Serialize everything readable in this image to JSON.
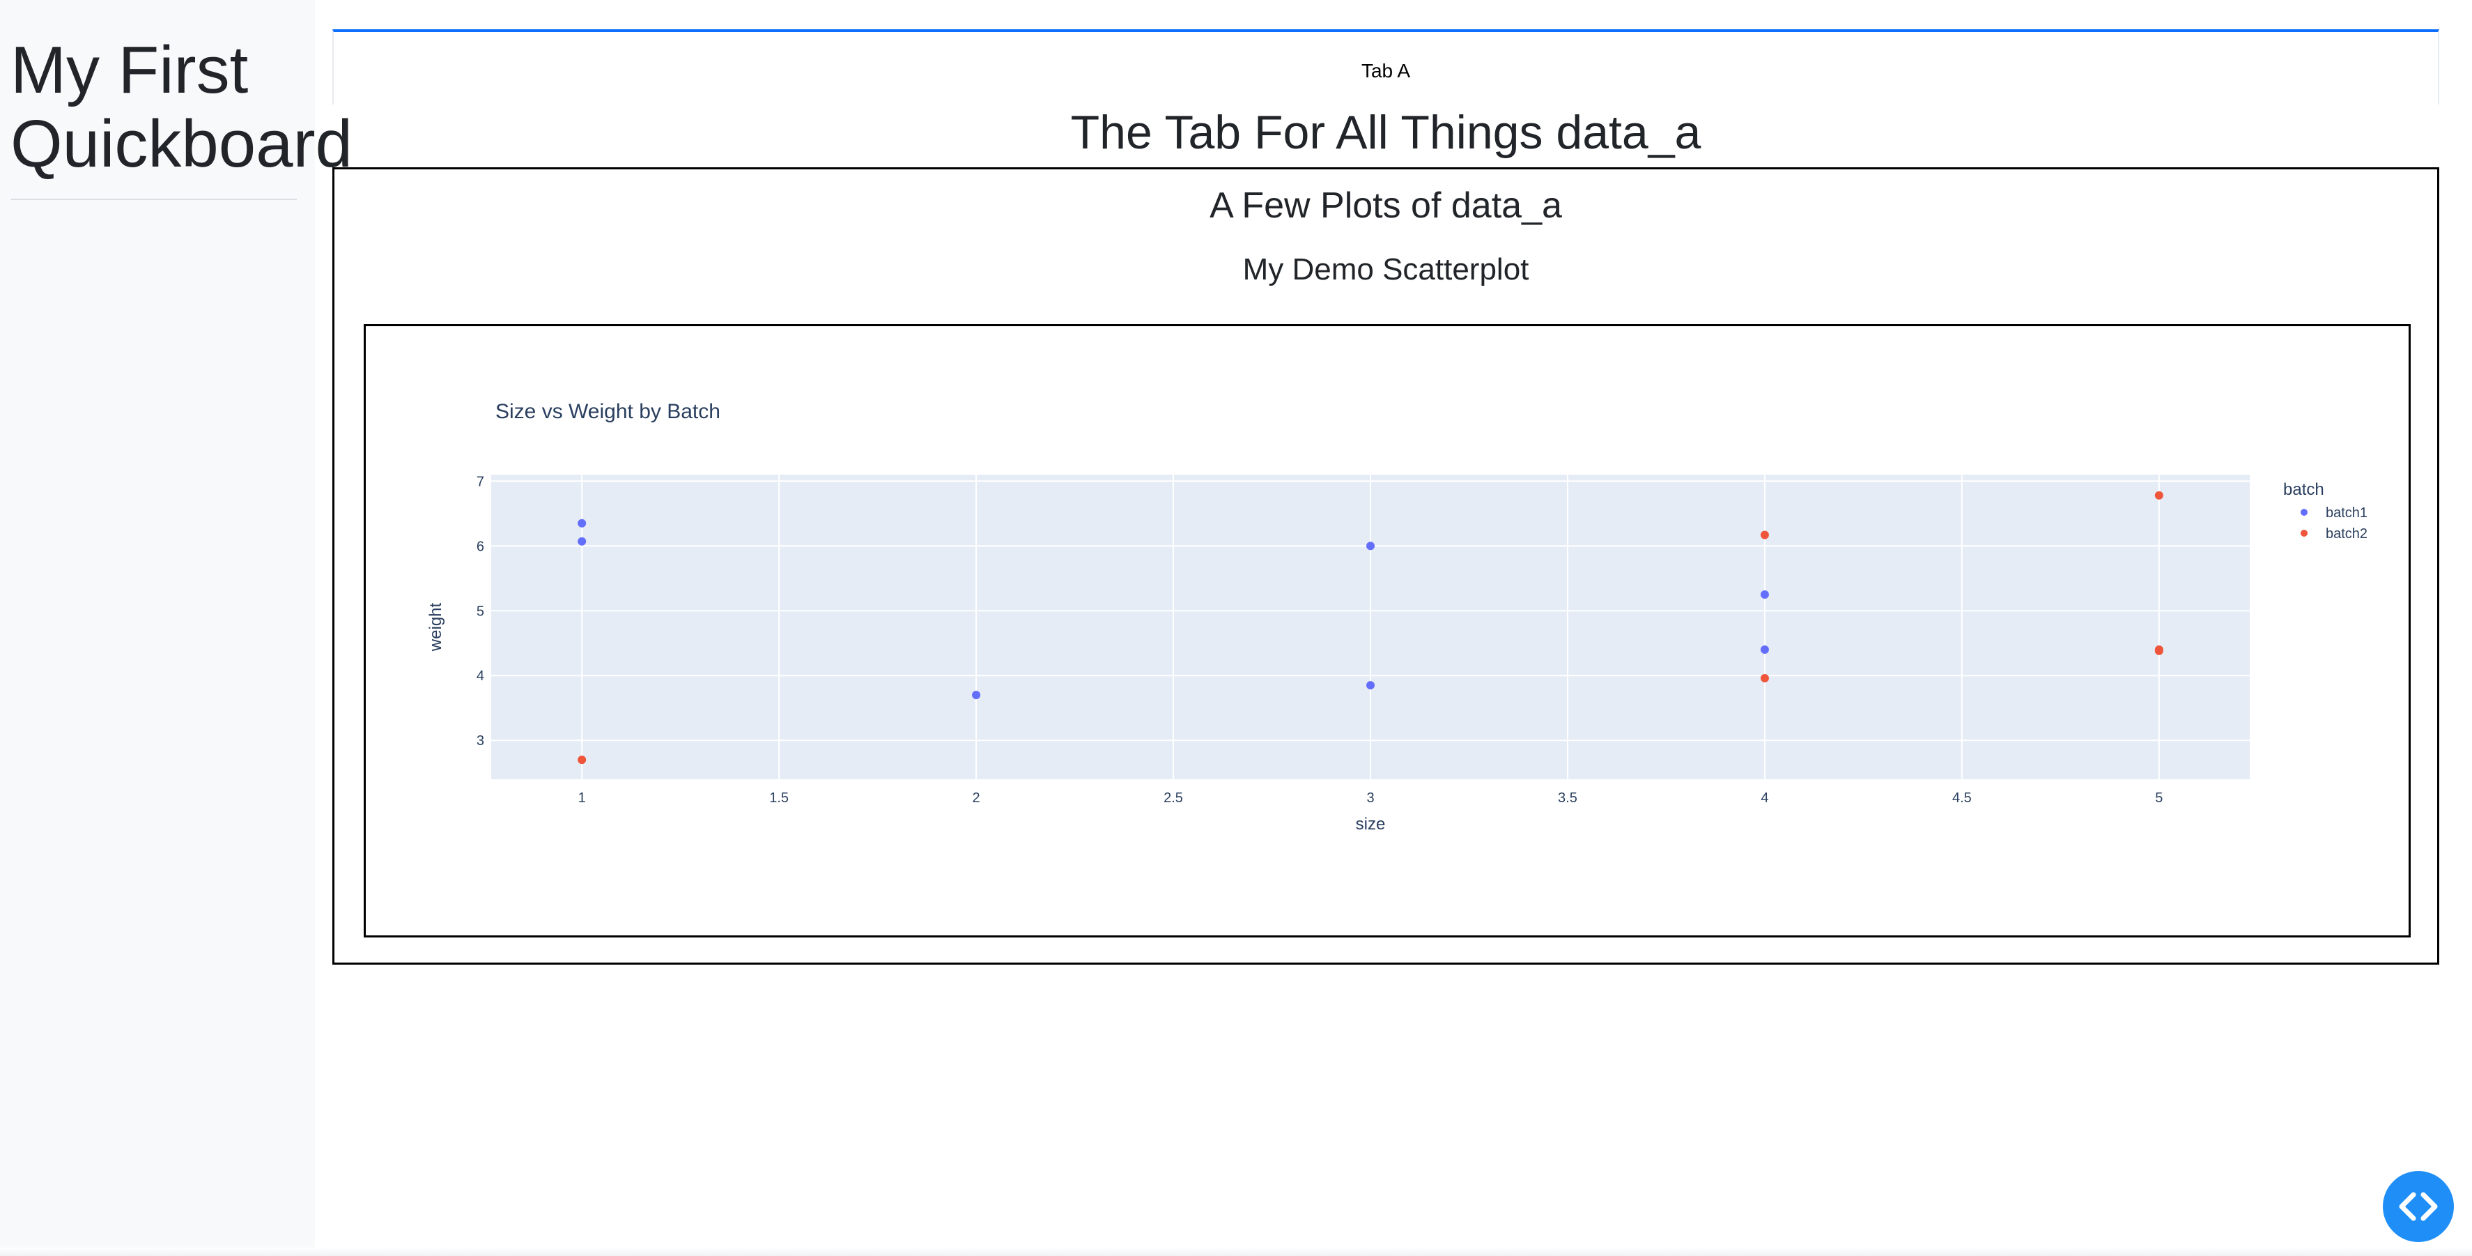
{
  "sidebar": {
    "title": "My First\nQuickboard"
  },
  "tabs": [
    {
      "label": "Tab A",
      "active": true
    }
  ],
  "page": {
    "heading": "The Tab For All Things data_a"
  },
  "section": {
    "heading": "A Few Plots of data_a",
    "plot_heading": "My Demo Scatterplot"
  },
  "colors": {
    "accent": "#0d6efd",
    "plot_background": "#e5ecf6",
    "batch1": "#636efa",
    "batch2": "#ef553b",
    "fab": "#1f8ff7"
  },
  "fab": {
    "icon": "code-icon"
  },
  "chart_data": {
    "type": "scatter",
    "title": "Size vs Weight by Batch",
    "xlabel": "size",
    "ylabel": "weight",
    "xlim": [
      0.77,
      5.23
    ],
    "ylim": [
      2.4,
      7.1
    ],
    "x_ticks": [
      "1",
      "1.5",
      "2",
      "2.5",
      "3",
      "3.5",
      "4",
      "4.5",
      "5"
    ],
    "y_ticks": [
      "3",
      "4",
      "5",
      "6",
      "7"
    ],
    "grid": true,
    "legend_title": "batch",
    "legend_position": "top-right",
    "series": [
      {
        "name": "batch1",
        "color": "#636efa",
        "points": [
          [
            1,
            6.35
          ],
          [
            1,
            6.07
          ],
          [
            2,
            3.7
          ],
          [
            3,
            6.0
          ],
          [
            3,
            3.85
          ],
          [
            4,
            5.25
          ],
          [
            4,
            4.4
          ]
        ]
      },
      {
        "name": "batch2",
        "color": "#ef553b",
        "points": [
          [
            1,
            2.7
          ],
          [
            4,
            6.17
          ],
          [
            4,
            3.96
          ],
          [
            5,
            6.78
          ],
          [
            5,
            4.38
          ],
          [
            5,
            4.4
          ]
        ]
      }
    ]
  }
}
